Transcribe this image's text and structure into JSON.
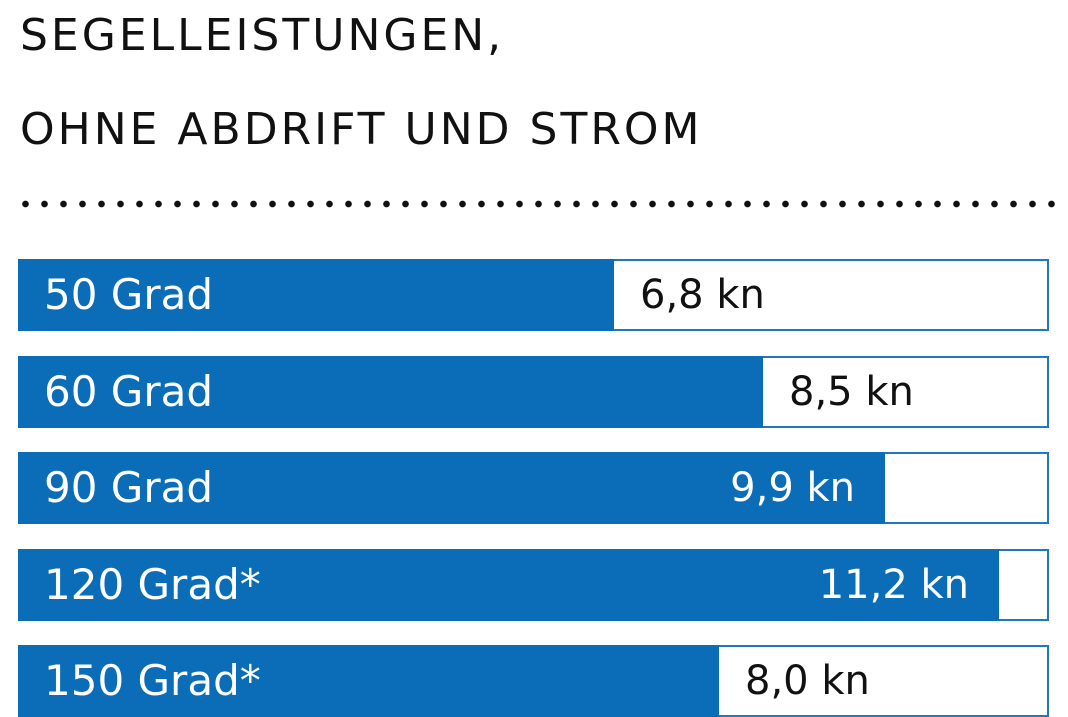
{
  "title": {
    "line1": "SEGELLEISTUNGEN,",
    "line2": "OHNE ABDRIFT UND STROM"
  },
  "colors": {
    "bar_fill": "#0b6db7",
    "bar_border": "#1f78c1",
    "text": "#111111",
    "background": "#ffffff"
  },
  "bars": [
    {
      "label": "50 Grad",
      "value_text": "6,8 kn",
      "value": 6.8
    },
    {
      "label": "60 Grad",
      "value_text": "8,5 kn",
      "value": 8.5
    },
    {
      "label": "90 Grad",
      "value_text": "9,9 kn",
      "value": 9.9
    },
    {
      "label": "120 Grad*",
      "value_text": "11,2 kn",
      "value": 11.2
    },
    {
      "label": "150 Grad*",
      "value_text": "8,0 kn",
      "value": 8.0
    }
  ],
  "chart_data": {
    "type": "bar",
    "orientation": "horizontal",
    "title": "SEGELLEISTUNGEN, OHNE ABDRIFT UND STROM",
    "categories": [
      "50 Grad",
      "60 Grad",
      "90 Grad",
      "120 Grad*",
      "150 Grad*"
    ],
    "values": [
      6.8,
      8.5,
      9.9,
      11.2,
      8.0
    ],
    "value_labels": [
      "6,8 kn",
      "8,5 kn",
      "9,9 kn",
      "11,2 kn",
      "8,0 kn"
    ],
    "unit": "kn",
    "xlabel": "",
    "ylabel": "",
    "xlim": [
      0,
      11.77
    ],
    "grid": false,
    "legend": null
  }
}
